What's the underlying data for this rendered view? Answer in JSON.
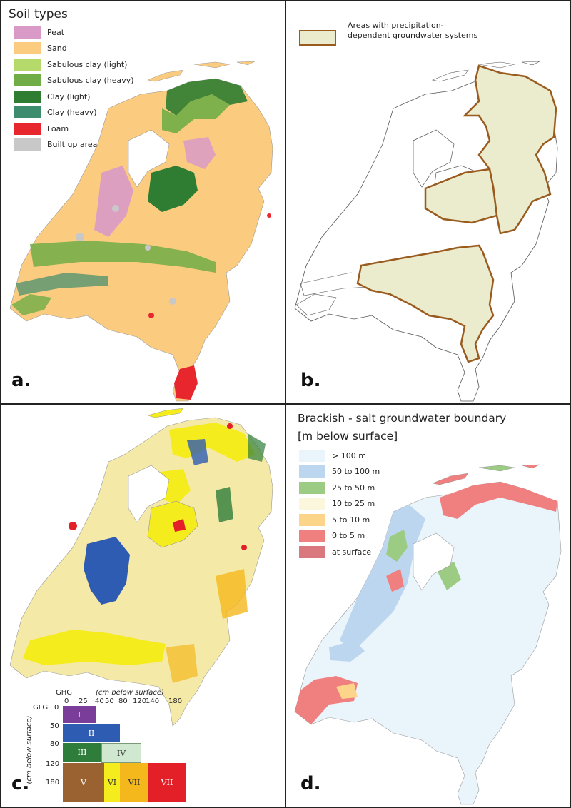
{
  "panel_a": {
    "legend_title": "Soil types",
    "legend": [
      {
        "label": "Peat",
        "color": "#d99ac8"
      },
      {
        "label": "Sand",
        "color": "#fbcc7f"
      },
      {
        "label": "Sabulous clay (light)",
        "color": "#b5d96b"
      },
      {
        "label": "Sabulous clay (heavy)",
        "color": "#70ad47"
      },
      {
        "label": "Clay (light)",
        "color": "#2e7d32"
      },
      {
        "label": "Clay (heavy)",
        "color": "#3d8c6e"
      },
      {
        "label": "Loam",
        "color": "#e8262e"
      },
      {
        "label": "Built up area",
        "color": "#c8c8c8"
      }
    ],
    "letter": "a."
  },
  "panel_b": {
    "legend_label": "Areas with precipitation-dependent groundwater systems",
    "swatch_fill": "#ebebcd",
    "swatch_border": "#9a5b1e",
    "letter": "b."
  },
  "panel_c": {
    "letter": "c.",
    "table": {
      "ghg_label": "GHG",
      "ghg_unit": "(cm below surface)",
      "glg_label": "GLG",
      "glg_unit": "(cm below surface)",
      "ghg_ticks": [
        "0",
        "25",
        "40",
        "50",
        "80",
        "120",
        "140",
        "180"
      ],
      "glg_ticks": [
        "0",
        "50",
        "80",
        "120",
        "180"
      ],
      "classes": [
        {
          "label": "I",
          "color": "#7a3d9a"
        },
        {
          "label": "II",
          "color": "#2f5cb3"
        },
        {
          "label": "III",
          "color": "#2e7d3a"
        },
        {
          "label": "IV",
          "color": "#cfe8cf"
        },
        {
          "label": "V",
          "color": "#9a6230"
        },
        {
          "label": "VI",
          "color": "#f4ec1c"
        },
        {
          "label": "VII",
          "color": "#f5b81c"
        },
        {
          "label": "VII",
          "color": "#e32027"
        }
      ]
    }
  },
  "panel_d": {
    "title": "Brackish - salt groundwater boundary",
    "subtitle": "[m below surface]",
    "legend": [
      {
        "label": "> 100 m",
        "color": "#eaf4fb"
      },
      {
        "label": "50 to 100 m",
        "color": "#bcd6ef"
      },
      {
        "label": "25 to 50 m",
        "color": "#9ccc84"
      },
      {
        "label": "10 to 25 m",
        "color": "#fbf7dc"
      },
      {
        "label": "5 to 10 m",
        "color": "#fdd58a"
      },
      {
        "label": "0 to 5 m",
        "color": "#f08080"
      },
      {
        "label": "at surface",
        "color": "#d9787e"
      }
    ],
    "letter": "d."
  }
}
